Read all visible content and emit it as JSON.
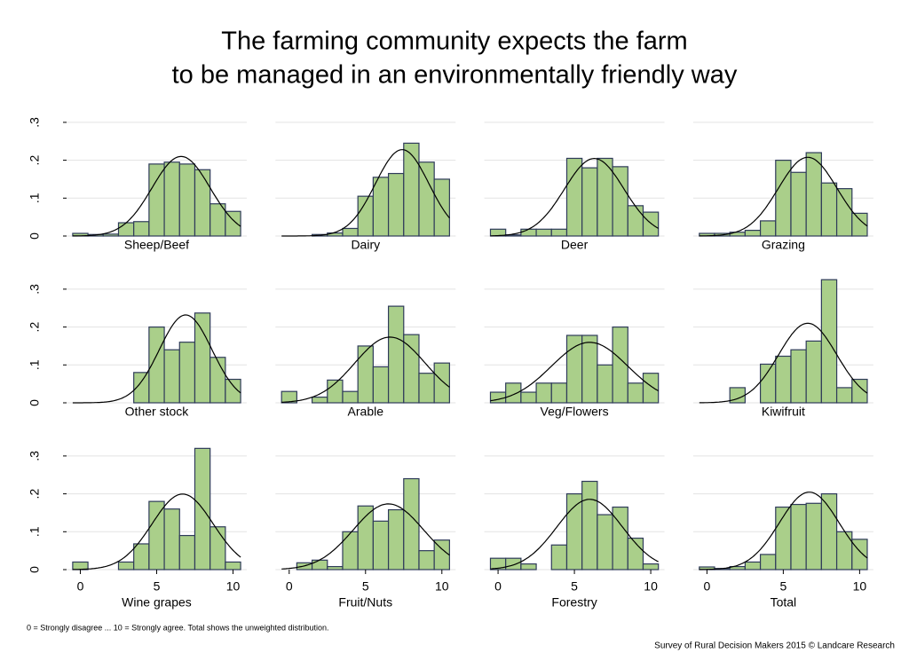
{
  "title": [
    "The farming community expects the farm",
    "to be managed in an environmentally friendly way"
  ],
  "footnote": "0 = Strongly disagree ... 10 = Strongly agree. Total shows the unweighted distribution.",
  "source": "Survey of Rural Decision Makers 2015 © Landcare Research",
  "chart_data": [
    {
      "type": "histogram",
      "title": "Sheep/Beef",
      "bins": [
        -0.5,
        0.5,
        1.5,
        2.5,
        3.5,
        4.5,
        5.5,
        6.5,
        7.5,
        8.5,
        9.5,
        10.5
      ],
      "values": [
        0.007,
        0.004,
        0.005,
        0.035,
        0.038,
        0.19,
        0.195,
        0.19,
        0.175,
        0.085,
        0.065
      ],
      "normal": {
        "mean": 6.6,
        "sd": 1.9
      },
      "xlim": [
        -0.9,
        10.9
      ],
      "ylim": [
        0,
        0.33
      ],
      "yticks": [
        0,
        {
          "value": 0.1,
          "label": ".1"
        },
        {
          "value": 0.2,
          "label": ".2"
        },
        {
          "value": 0.3,
          "label": ".3"
        }
      ],
      "color": "#aacf8a",
      "grid": true
    },
    {
      "type": "histogram",
      "title": "Dairy",
      "bins": [
        -0.5,
        0.5,
        1.5,
        2.5,
        3.5,
        4.5,
        5.5,
        6.5,
        7.5,
        8.5,
        9.5,
        10.5
      ],
      "values": [
        0,
        0,
        0.004,
        0.008,
        0.02,
        0.105,
        0.155,
        0.165,
        0.245,
        0.195,
        0.15
      ],
      "normal": {
        "mean": 7.4,
        "sd": 1.75
      },
      "xlim": [
        -0.9,
        10.9
      ],
      "ylim": [
        0,
        0.33
      ],
      "yticks": [
        0,
        {
          "value": 0.1,
          "label": ".1"
        },
        {
          "value": 0.2,
          "label": ".2"
        },
        {
          "value": 0.3,
          "label": ".3"
        }
      ],
      "color": "#aacf8a",
      "grid": true
    },
    {
      "type": "histogram",
      "title": "Deer",
      "bins": [
        -0.5,
        0.5,
        1.5,
        2.5,
        3.5,
        4.5,
        5.5,
        6.5,
        7.5,
        8.5,
        9.5,
        10.5
      ],
      "values": [
        0.018,
        0.003,
        0.018,
        0.018,
        0.018,
        0.205,
        0.18,
        0.205,
        0.183,
        0.08,
        0.063
      ],
      "normal": {
        "mean": 6.3,
        "sd": 1.95
      },
      "xlim": [
        -0.9,
        10.9
      ],
      "ylim": [
        0,
        0.33
      ],
      "yticks": [
        0,
        {
          "value": 0.1,
          "label": ".1"
        },
        {
          "value": 0.2,
          "label": ".2"
        },
        {
          "value": 0.3,
          "label": ".3"
        }
      ],
      "color": "#aacf8a",
      "grid": true
    },
    {
      "type": "histogram",
      "title": "Grazing",
      "bins": [
        -0.5,
        0.5,
        1.5,
        2.5,
        3.5,
        4.5,
        5.5,
        6.5,
        7.5,
        8.5,
        9.5,
        10.5
      ],
      "values": [
        0.007,
        0.007,
        0.01,
        0.015,
        0.04,
        0.2,
        0.168,
        0.22,
        0.14,
        0.125,
        0.06
      ],
      "normal": {
        "mean": 6.6,
        "sd": 1.92
      },
      "xlim": [
        -0.9,
        10.9
      ],
      "ylim": [
        0,
        0.33
      ],
      "yticks": [
        0,
        {
          "value": 0.1,
          "label": ".1"
        },
        {
          "value": 0.2,
          "label": ".2"
        },
        {
          "value": 0.3,
          "label": ".3"
        }
      ],
      "color": "#aacf8a",
      "grid": true
    },
    {
      "type": "histogram",
      "title": "Other stock",
      "bins": [
        -0.5,
        0.5,
        1.5,
        2.5,
        3.5,
        4.5,
        5.5,
        6.5,
        7.5,
        8.5,
        9.5,
        10.5
      ],
      "values": [
        0,
        0,
        0,
        0,
        0.08,
        0.2,
        0.14,
        0.16,
        0.237,
        0.12,
        0.062
      ],
      "normal": {
        "mean": 6.9,
        "sd": 1.72
      },
      "xlim": [
        -0.9,
        10.9
      ],
      "ylim": [
        0,
        0.33
      ],
      "yticks": [
        0,
        {
          "value": 0.1,
          "label": ".1"
        },
        {
          "value": 0.2,
          "label": ".2"
        },
        {
          "value": 0.3,
          "label": ".3"
        }
      ],
      "color": "#aacf8a",
      "grid": true
    },
    {
      "type": "histogram",
      "title": "Arable",
      "bins": [
        -0.5,
        0.5,
        1.5,
        2.5,
        3.5,
        4.5,
        5.5,
        6.5,
        7.5,
        8.5,
        9.5,
        10.5
      ],
      "values": [
        0.03,
        0,
        0.015,
        0.06,
        0.03,
        0.15,
        0.095,
        0.255,
        0.18,
        0.078,
        0.105
      ],
      "normal": {
        "mean": 6.6,
        "sd": 2.3
      },
      "xlim": [
        -0.9,
        10.9
      ],
      "ylim": [
        0,
        0.33
      ],
      "yticks": [
        0,
        {
          "value": 0.1,
          "label": ".1"
        },
        {
          "value": 0.2,
          "label": ".2"
        },
        {
          "value": 0.3,
          "label": ".3"
        }
      ],
      "color": "#aacf8a",
      "grid": true
    },
    {
      "type": "histogram",
      "title": "Veg/Flowers",
      "bins": [
        -0.5,
        0.5,
        1.5,
        2.5,
        3.5,
        4.5,
        5.5,
        6.5,
        7.5,
        8.5,
        9.5,
        10.5
      ],
      "values": [
        0.028,
        0.052,
        0.028,
        0.052,
        0.052,
        0.178,
        0.178,
        0.1,
        0.2,
        0.052,
        0.078
      ],
      "normal": {
        "mean": 6.0,
        "sd": 2.5
      },
      "xlim": [
        -0.9,
        10.9
      ],
      "ylim": [
        0,
        0.33
      ],
      "yticks": [
        0,
        {
          "value": 0.1,
          "label": ".1"
        },
        {
          "value": 0.2,
          "label": ".2"
        },
        {
          "value": 0.3,
          "label": ".3"
        }
      ],
      "color": "#aacf8a",
      "grid": true
    },
    {
      "type": "histogram",
      "title": "Kiwifruit",
      "bins": [
        -0.5,
        0.5,
        1.5,
        2.5,
        3.5,
        4.5,
        5.5,
        6.5,
        7.5,
        8.5,
        9.5,
        10.5
      ],
      "values": [
        0,
        0,
        0.04,
        0,
        0.102,
        0.123,
        0.14,
        0.163,
        0.325,
        0.04,
        0.062
      ],
      "normal": {
        "mean": 6.6,
        "sd": 1.9
      },
      "xlim": [
        -0.9,
        10.9
      ],
      "ylim": [
        0,
        0.33
      ],
      "yticks": [
        0,
        {
          "value": 0.1,
          "label": ".1"
        },
        {
          "value": 0.2,
          "label": ".2"
        },
        {
          "value": 0.3,
          "label": ".3"
        }
      ],
      "color": "#aacf8a",
      "grid": true
    },
    {
      "type": "histogram",
      "title": "Wine grapes",
      "bins": [
        -0.5,
        0.5,
        1.5,
        2.5,
        3.5,
        4.5,
        5.5,
        6.5,
        7.5,
        8.5,
        9.5,
        10.5
      ],
      "values": [
        0.02,
        0,
        0,
        0.02,
        0.068,
        0.18,
        0.16,
        0.09,
        0.32,
        0.113,
        0.02
      ],
      "normal": {
        "mean": 6.7,
        "sd": 2.0
      },
      "xlim": [
        -0.9,
        10.9
      ],
      "ylim": [
        0,
        0.33
      ],
      "xticks": [
        0,
        5,
        10
      ],
      "yticks": [
        0,
        {
          "value": 0.1,
          "label": ".1"
        },
        {
          "value": 0.2,
          "label": ".2"
        },
        {
          "value": 0.3,
          "label": ".3"
        }
      ],
      "color": "#aacf8a",
      "grid": true
    },
    {
      "type": "histogram",
      "title": "Fruit/Nuts",
      "bins": [
        -0.5,
        0.5,
        1.5,
        2.5,
        3.5,
        4.5,
        5.5,
        6.5,
        7.5,
        8.5,
        9.5,
        10.5
      ],
      "values": [
        0,
        0.018,
        0.025,
        0.008,
        0.1,
        0.168,
        0.128,
        0.158,
        0.24,
        0.05,
        0.078
      ],
      "normal": {
        "mean": 6.5,
        "sd": 2.3
      },
      "xlim": [
        -0.9,
        10.9
      ],
      "ylim": [
        0,
        0.33
      ],
      "xticks": [
        0,
        5,
        10
      ],
      "yticks": [
        0,
        {
          "value": 0.1,
          "label": ".1"
        },
        {
          "value": 0.2,
          "label": ".2"
        },
        {
          "value": 0.3,
          "label": ".3"
        }
      ],
      "color": "#aacf8a",
      "grid": true
    },
    {
      "type": "histogram",
      "title": "Forestry",
      "bins": [
        -0.5,
        0.5,
        1.5,
        2.5,
        3.5,
        4.5,
        5.5,
        6.5,
        7.5,
        8.5,
        9.5,
        10.5
      ],
      "values": [
        0.03,
        0.03,
        0.015,
        0,
        0.065,
        0.2,
        0.233,
        0.145,
        0.165,
        0.083,
        0.015
      ],
      "normal": {
        "mean": 6.0,
        "sd": 2.15
      },
      "xlim": [
        -0.9,
        10.9
      ],
      "ylim": [
        0,
        0.33
      ],
      "xticks": [
        0,
        5,
        10
      ],
      "yticks": [
        0,
        {
          "value": 0.1,
          "label": ".1"
        },
        {
          "value": 0.2,
          "label": ".2"
        },
        {
          "value": 0.3,
          "label": ".3"
        }
      ],
      "color": "#aacf8a",
      "grid": true
    },
    {
      "type": "histogram",
      "title": "Total",
      "bins": [
        -0.5,
        0.5,
        1.5,
        2.5,
        3.5,
        4.5,
        5.5,
        6.5,
        7.5,
        8.5,
        9.5,
        10.5
      ],
      "values": [
        0.007,
        0.003,
        0.008,
        0.02,
        0.04,
        0.165,
        0.172,
        0.175,
        0.2,
        0.1,
        0.08
      ],
      "normal": {
        "mean": 6.7,
        "sd": 1.95
      },
      "xlim": [
        -0.9,
        10.9
      ],
      "ylim": [
        0,
        0.33
      ],
      "xticks": [
        0,
        5,
        10
      ],
      "yticks": [
        0,
        {
          "value": 0.1,
          "label": ".1"
        },
        {
          "value": 0.2,
          "label": ".2"
        },
        {
          "value": 0.3,
          "label": ".3"
        }
      ],
      "color": "#aacf8a",
      "grid": true
    }
  ]
}
